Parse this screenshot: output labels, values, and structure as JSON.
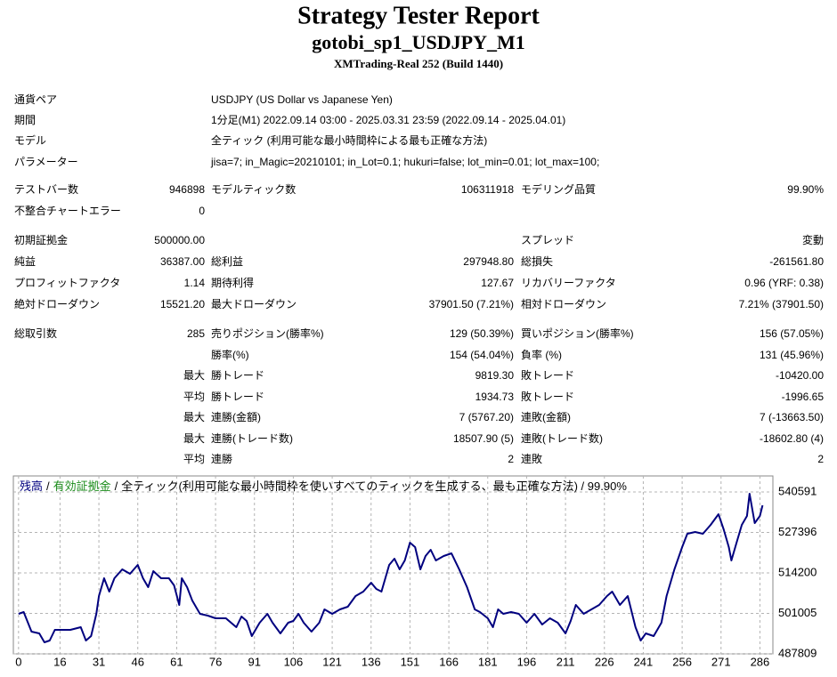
{
  "header": {
    "title": "Strategy Tester Report",
    "subtitle": "gotobi_sp1_USDJPY_M1",
    "server": "XMTrading-Real 252 (Build 1440)"
  },
  "params": [
    [
      "通貨ペア",
      "USDJPY (US Dollar vs Japanese Yen)"
    ],
    [
      "期間",
      "1分足(M1) 2022.09.14 03:00 - 2025.03.31 23:59 (2022.09.14 - 2025.04.01)"
    ],
    [
      "モデル",
      "全ティック (利用可能な最小時間枠による最も正確な方法)"
    ],
    [
      "パラメーター",
      "jisa=7; in_Magic=20210101; in_Lot=0.1; hukuri=false; lot_min=0.01; lot_max=100;"
    ]
  ],
  "stats": [
    [
      "テストバー数",
      "946898",
      "モデルティック数",
      "106311918",
      "モデリング品質",
      "99.90%"
    ],
    [
      "不整合チャートエラー",
      "0",
      null,
      null,
      null,
      null
    ],
    [
      "初期証拠金",
      "500000.00",
      null,
      null,
      "スプレッド",
      "変動"
    ],
    [
      "純益",
      "36387.00",
      "総利益",
      "297948.80",
      "総損失",
      "-261561.80"
    ],
    [
      "プロフィットファクタ",
      "1.14",
      "期待利得",
      "127.67",
      "リカバリーファクタ",
      "0.96 (YRF: 0.38)"
    ],
    [
      "絶対ドローダウン",
      "15521.20",
      "最大ドローダウン",
      "37901.50 (7.21%)",
      "相対ドローダウン",
      "7.21% (37901.50)"
    ],
    [
      "総取引数",
      "285",
      "売りポジション(勝率%)",
      "129 (50.39%)",
      "買いポジション(勝率%)",
      "156 (57.05%)"
    ],
    [
      null,
      null,
      "勝率(%)",
      "154 (54.04%)",
      "負率 (%)",
      "131 (45.96%)"
    ],
    [
      null,
      "最大",
      "勝トレード",
      "9819.30",
      "敗トレード",
      "-10420.00"
    ],
    [
      null,
      "平均",
      "勝トレード",
      "1934.73",
      "敗トレード",
      "-1996.65"
    ],
    [
      null,
      "最大",
      "連勝(金額)",
      "7 (5767.20)",
      "連敗(金額)",
      "7 (-13663.50)"
    ],
    [
      null,
      "最大",
      "連勝(トレード数)",
      "18507.90 (5)",
      "連敗(トレード数)",
      "-18602.80 (4)"
    ],
    [
      null,
      "平均",
      "連勝",
      "2",
      "連敗",
      "2"
    ]
  ],
  "chart_data": {
    "type": "line",
    "separator": "/",
    "equity_label": {
      "text": "有効証拠金",
      "color": "#1a8c1a"
    },
    "description": "全ティック(利用可能な最小時間枠を使いすべてのティックを生成する、最も正確な方法) / 99.90%",
    "x": [
      0,
      2,
      5,
      8,
      10,
      12,
      14,
      20,
      24,
      26,
      28,
      30,
      31,
      33,
      35,
      37,
      40,
      43,
      46,
      48,
      50,
      52,
      55,
      58,
      60,
      62,
      63,
      65,
      67,
      70,
      73,
      76,
      80,
      84,
      86,
      88,
      90,
      93,
      96,
      98,
      101,
      104,
      106,
      108,
      110,
      113,
      116,
      118,
      121,
      124,
      127,
      130,
      133,
      136,
      138,
      140,
      143,
      145,
      147,
      149,
      151,
      153,
      155,
      157,
      159,
      161,
      164,
      167,
      170,
      173,
      176,
      178,
      181,
      183,
      185,
      187,
      190,
      193,
      196,
      199,
      202,
      205,
      208,
      211,
      213,
      215,
      218,
      221,
      224,
      227,
      229,
      232,
      235,
      238,
      240,
      242,
      245,
      248,
      250,
      253,
      256,
      258,
      261,
      264,
      267,
      270,
      272,
      274,
      275,
      277,
      279,
      281,
      282,
      284,
      286,
      287
    ],
    "series": [
      {
        "name": "残高",
        "color": "#00007f",
        "values": [
          500861,
          501441,
          495061,
          494481,
          491581,
          492161,
          495641,
          495641,
          496511,
          492161,
          493611,
          500861,
          506661,
          512461,
          508111,
          512461,
          515361,
          513911,
          516811,
          512461,
          509561,
          514781,
          512461,
          512461,
          510141,
          503761,
          512461,
          509561,
          505211,
          500861,
          500281,
          499411,
          499411,
          496511,
          499991,
          498541,
          493611,
          497961,
          500861,
          497961,
          494481,
          497961,
          498541,
          500861,
          497961,
          495061,
          497961,
          502311,
          500861,
          502311,
          503181,
          506661,
          508111,
          511011,
          508981,
          508111,
          516811,
          518841,
          515361,
          518261,
          524061,
          522611,
          515361,
          519711,
          521741,
          518261,
          519711,
          520581,
          515361,
          509561,
          502311,
          501441,
          499411,
          496511,
          502311,
          500861,
          501441,
          500861,
          497961,
          500861,
          497381,
          499411,
          497961,
          494481,
          498541,
          503761,
          500861,
          502311,
          503761,
          506661,
          508111,
          503761,
          506661,
          496511,
          492161,
          494481,
          493611,
          497961,
          506661,
          515361,
          522611,
          526961,
          527541,
          526961,
          529861,
          533341,
          528411,
          522611,
          518261,
          524061,
          529861,
          532761,
          540011,
          530441,
          532761,
          536241
        ]
      }
    ],
    "xlim": [
      -2,
      291
    ],
    "ylim": [
      487809,
      545811
    ],
    "xticks": [
      0,
      16,
      31,
      46,
      61,
      76,
      91,
      106,
      121,
      136,
      151,
      166,
      181,
      196,
      211,
      226,
      241,
      256,
      271,
      286
    ],
    "yticks": [
      487809,
      501005,
      514200,
      527396,
      540591
    ],
    "grid": true
  }
}
